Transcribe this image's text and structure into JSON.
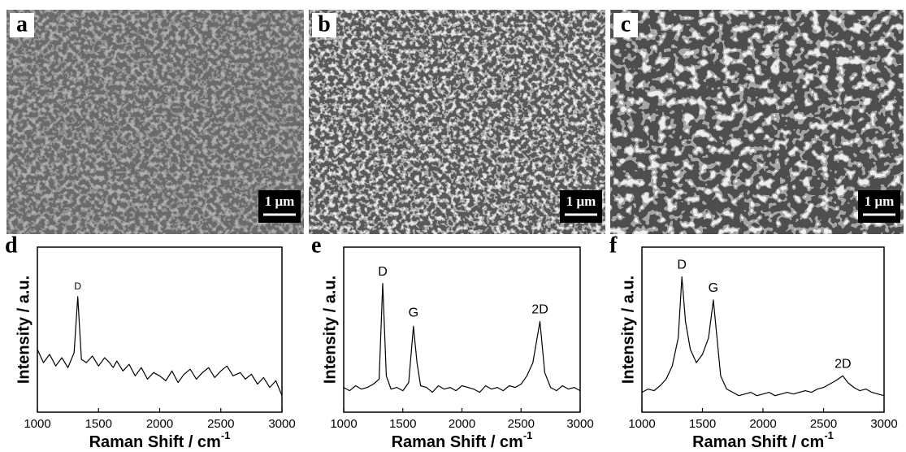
{
  "images": [
    {
      "label": "a",
      "scale_bar": "1 μm"
    },
    {
      "label": "b",
      "scale_bar": "1 μm"
    },
    {
      "label": "c",
      "scale_bar": "1 μm"
    }
  ],
  "chart_data": [
    {
      "type": "line",
      "panel": "d",
      "x_label": "Raman Shift / cm",
      "x_label_sup": "-1",
      "y_label": "Intensity / a.u.",
      "xlim": [
        1000,
        3000
      ],
      "xticks": [
        1000,
        1500,
        2000,
        2500,
        3000
      ],
      "ylim": [
        0,
        100
      ],
      "color": "#000000",
      "x": [
        1000,
        1050,
        1100,
        1150,
        1200,
        1250,
        1300,
        1330,
        1360,
        1400,
        1450,
        1500,
        1550,
        1590,
        1620,
        1650,
        1700,
        1750,
        1800,
        1850,
        1900,
        1950,
        2000,
        2050,
        2100,
        2150,
        2200,
        2250,
        2300,
        2350,
        2400,
        2450,
        2500,
        2550,
        2600,
        2660,
        2700,
        2750,
        2800,
        2850,
        2900,
        2950,
        3000
      ],
      "values": [
        38,
        30,
        35,
        28,
        33,
        27,
        36,
        70,
        32,
        30,
        34,
        28,
        33,
        30,
        27,
        31,
        25,
        29,
        22,
        27,
        20,
        24,
        22,
        19,
        25,
        18,
        23,
        26,
        20,
        24,
        27,
        21,
        25,
        28,
        22,
        24,
        20,
        23,
        17,
        21,
        15,
        19,
        10
      ],
      "annotations": [
        {
          "text": "D",
          "x": 1330,
          "y": 73
        }
      ]
    },
    {
      "type": "line",
      "panel": "e",
      "x_label": "Raman Shift / cm",
      "x_label_sup": "-1",
      "y_label": "Intensity / a.u.",
      "xlim": [
        1000,
        3000
      ],
      "xticks": [
        1000,
        1500,
        2000,
        2500,
        3000
      ],
      "ylim": [
        0,
        100
      ],
      "color": "#000000",
      "x": [
        1000,
        1050,
        1100,
        1150,
        1200,
        1250,
        1300,
        1330,
        1360,
        1400,
        1450,
        1500,
        1550,
        1590,
        1620,
        1650,
        1700,
        1750,
        1800,
        1850,
        1900,
        1950,
        2000,
        2050,
        2100,
        2150,
        2200,
        2250,
        2300,
        2350,
        2400,
        2450,
        2500,
        2550,
        2600,
        2660,
        2700,
        2750,
        2800,
        2850,
        2900,
        2950,
        3000
      ],
      "values": [
        15,
        13,
        16,
        14,
        15,
        17,
        20,
        78,
        22,
        14,
        15,
        13,
        18,
        52,
        30,
        16,
        15,
        12,
        16,
        14,
        15,
        13,
        16,
        15,
        14,
        12,
        16,
        14,
        15,
        13,
        16,
        15,
        17,
        22,
        30,
        55,
        24,
        15,
        13,
        16,
        14,
        15,
        13
      ],
      "annotations": [
        {
          "text": "D",
          "x": 1330,
          "y": 82
        },
        {
          "text": "G",
          "x": 1590,
          "y": 57
        },
        {
          "text": "2D",
          "x": 2660,
          "y": 59
        }
      ]
    },
    {
      "type": "line",
      "panel": "f",
      "x_label": "Raman Shift / cm",
      "x_label_sup": "-1",
      "y_label": "Intensity / a.u.",
      "xlim": [
        1000,
        3000
      ],
      "xticks": [
        1000,
        1500,
        2000,
        2500,
        3000
      ],
      "ylim": [
        0,
        100
      ],
      "color": "#000000",
      "x": [
        1000,
        1050,
        1100,
        1150,
        1200,
        1250,
        1300,
        1330,
        1360,
        1400,
        1450,
        1500,
        1550,
        1590,
        1620,
        1650,
        1700,
        1750,
        1800,
        1850,
        1900,
        1950,
        2000,
        2050,
        2100,
        2150,
        2200,
        2250,
        2300,
        2350,
        2400,
        2450,
        2500,
        2550,
        2600,
        2660,
        2700,
        2750,
        2800,
        2850,
        2900,
        2950,
        3000
      ],
      "values": [
        12,
        14,
        13,
        16,
        20,
        28,
        45,
        82,
        55,
        38,
        30,
        35,
        45,
        68,
        45,
        22,
        14,
        12,
        10,
        11,
        12,
        10,
        11,
        12,
        10,
        11,
        12,
        11,
        12,
        13,
        12,
        14,
        15,
        17,
        19,
        22,
        18,
        15,
        13,
        14,
        12,
        11,
        10
      ],
      "annotations": [
        {
          "text": "D",
          "x": 1330,
          "y": 86
        },
        {
          "text": "G",
          "x": 1590,
          "y": 72
        },
        {
          "text": "2D",
          "x": 2660,
          "y": 26
        }
      ]
    }
  ]
}
